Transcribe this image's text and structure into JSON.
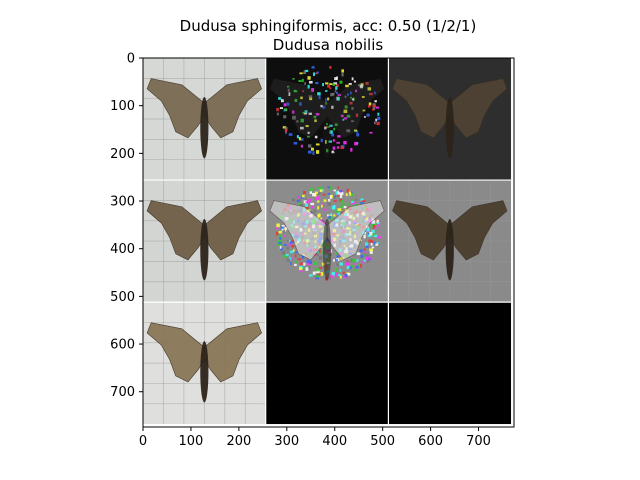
{
  "chart_data": {
    "type": "image-grid",
    "title": "Dudusa sphingiformis, acc: 0.50 (1/2/1)",
    "subtitle": "Dudusa nobilis",
    "xlim": [
      0,
      774
    ],
    "ylim": [
      774,
      0
    ],
    "xticks": [
      0,
      100,
      200,
      300,
      400,
      500,
      600,
      700
    ],
    "yticks": [
      0,
      100,
      200,
      300,
      400,
      500,
      600,
      700
    ],
    "grid_rows": 3,
    "grid_cols": 3,
    "tile_size": 256,
    "tiles": [
      {
        "row": 0,
        "col": 0,
        "kind": "photo",
        "bg": "#d6d8d6",
        "moth": "#7a6a52",
        "name": "tile-photo-r0c0"
      },
      {
        "row": 0,
        "col": 1,
        "kind": "noisy-dark",
        "bg": "#0e0e0e",
        "moth": "#4d4d4d",
        "name": "tile-saliency-r0c1"
      },
      {
        "row": 0,
        "col": 2,
        "kind": "dark-moth",
        "bg": "#2e2e2e",
        "moth": "#4e4334",
        "name": "tile-masked-r0c2"
      },
      {
        "row": 1,
        "col": 0,
        "kind": "photo",
        "bg": "#d3d5d3",
        "moth": "#6f5e47",
        "name": "tile-photo-r1c0"
      },
      {
        "row": 1,
        "col": 1,
        "kind": "noisy-gray",
        "bg": "#8c8c8c",
        "moth": "#e8e8e8",
        "name": "tile-saliency-r1c1"
      },
      {
        "row": 1,
        "col": 2,
        "kind": "gray-moth",
        "bg": "#8a8a8a",
        "moth": "#4a3e2e",
        "name": "tile-masked-r1c2"
      },
      {
        "row": 2,
        "col": 0,
        "kind": "photo",
        "bg": "#dfe0de",
        "moth": "#8a7658",
        "name": "tile-photo-r2c0"
      },
      {
        "row": 2,
        "col": 1,
        "kind": "black",
        "bg": "#000000",
        "moth": "#000000",
        "name": "tile-empty-r2c1"
      },
      {
        "row": 2,
        "col": 2,
        "kind": "black",
        "bg": "#000000",
        "moth": "#000000",
        "name": "tile-empty-r2c2"
      }
    ],
    "separator_color": "#ffffff",
    "grid_line_color": "#9a9a9a"
  }
}
